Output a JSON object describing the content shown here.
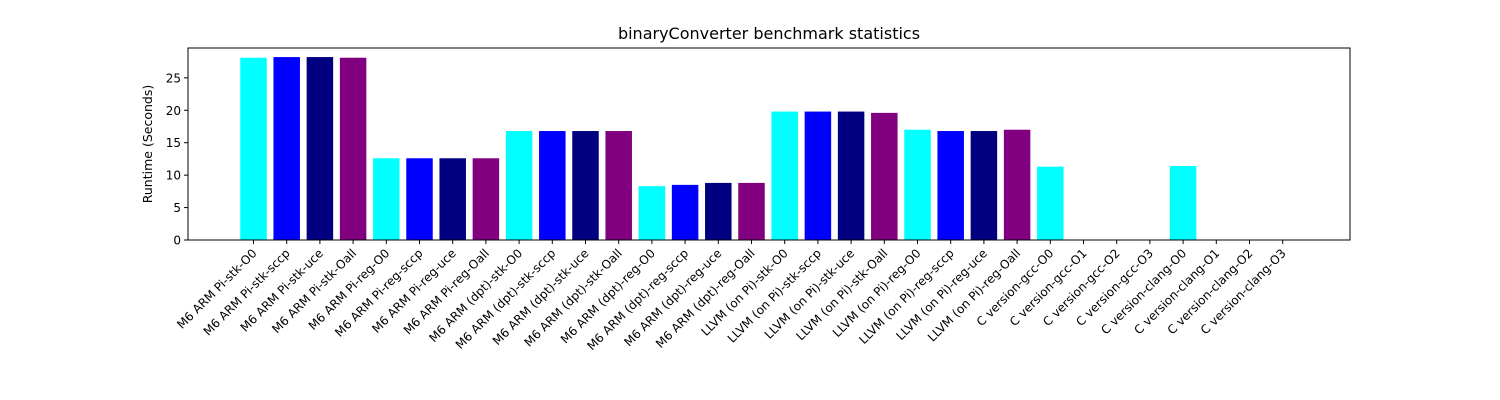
{
  "chart_data": {
    "type": "bar",
    "title": "binaryConverter benchmark statistics",
    "xlabel": "",
    "ylabel": "Runtime (Seconds)",
    "ylim": [
      0,
      29.6
    ],
    "yticks": [
      0,
      5,
      10,
      15,
      20,
      25
    ],
    "grid": false,
    "categories": [
      "M6 ARM Pi-stk-O0",
      "M6 ARM Pi-stk-sccp",
      "M6 ARM Pi-stk-uce",
      "M6 ARM Pi-stk-Oall",
      "M6 ARM Pi-reg-O0",
      "M6 ARM Pi-reg-sccp",
      "M6 ARM Pi-reg-uce",
      "M6 ARM Pi-reg-Oall",
      "M6 ARM (dpt)-stk-O0",
      "M6 ARM (dpt)-stk-sccp",
      "M6 ARM (dpt)-stk-uce",
      "M6 ARM (dpt)-stk-Oall",
      "M6 ARM (dpt)-reg-O0",
      "M6 ARM (dpt)-reg-sccp",
      "M6 ARM (dpt)-reg-uce",
      "M6 ARM (dpt)-reg-Oall",
      "LLVM (on Pi)-stk-O0",
      "LLVM (on Pi)-stk-sccp",
      "LLVM (on Pi)-stk-uce",
      "LLVM (on Pi)-stk-Oall",
      "LLVM (on Pi)-reg-O0",
      "LLVM (on Pi)-reg-sccp",
      "LLVM (on Pi)-reg-uce",
      "LLVM (on Pi)-reg-Oall",
      "C version-gcc-O0",
      "C version-gcc-O1",
      "C version-gcc-O2",
      "C version-gcc-O3",
      "C version-clang-O0",
      "C version-clang-O1",
      "C version-clang-O2",
      "C version-clang-O3"
    ],
    "values": [
      28.1,
      28.2,
      28.2,
      28.1,
      12.6,
      12.6,
      12.6,
      12.6,
      16.8,
      16.8,
      16.8,
      16.8,
      8.3,
      8.5,
      8.8,
      8.8,
      19.8,
      19.8,
      19.8,
      19.6,
      17.0,
      16.8,
      16.8,
      17.0,
      11.3,
      0,
      0,
      0,
      11.4,
      0,
      0,
      0
    ],
    "colors": [
      "#00ffff",
      "#0000ff",
      "#000080",
      "#800080",
      "#00ffff",
      "#0000ff",
      "#000080",
      "#800080",
      "#00ffff",
      "#0000ff",
      "#000080",
      "#800080",
      "#00ffff",
      "#0000ff",
      "#000080",
      "#800080",
      "#00ffff",
      "#0000ff",
      "#000080",
      "#800080",
      "#00ffff",
      "#0000ff",
      "#000080",
      "#800080",
      "#00ffff",
      "#0000ff",
      "#000080",
      "#800080",
      "#00ffff",
      "#0000ff",
      "#000080",
      "#800080"
    ]
  }
}
